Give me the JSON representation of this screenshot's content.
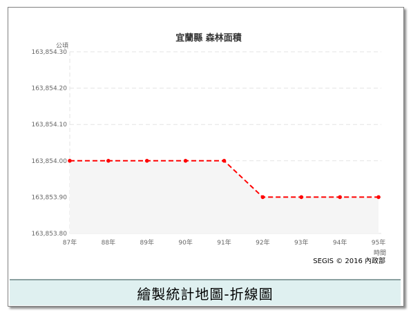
{
  "chart_data": {
    "type": "line",
    "title": "宜蘭縣 森林面積",
    "ylabel": "公頃",
    "xlabel": "時間",
    "categories": [
      "87年",
      "88年",
      "89年",
      "90年",
      "91年",
      "92年",
      "93年",
      "94年",
      "95年"
    ],
    "values": [
      163854.0,
      163854.0,
      163854.0,
      163854.0,
      163854.0,
      163853.9,
      163853.9,
      163853.9,
      163853.9
    ],
    "ylim": [
      163853.8,
      163854.3
    ],
    "yticks": [
      163853.8,
      163853.9,
      163854.0,
      163854.1,
      163854.2,
      163854.3
    ],
    "ytick_labels": [
      "163,853.80",
      "163,853.90",
      "163,854.00",
      "163,854.10",
      "163,854.20",
      "163,854.30"
    ],
    "grid": true,
    "line_color": "#ff0000",
    "area_color": "#f5f5f5"
  },
  "credit": "SEGIS © 2016 內政部",
  "caption": "繪製統計地圖-折線圖"
}
